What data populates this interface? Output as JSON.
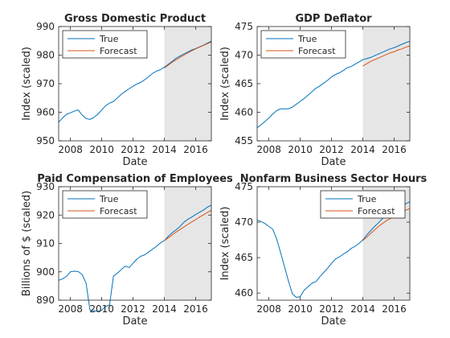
{
  "colors": {
    "true_series": "#0072BD",
    "forecast_series": "#D95319",
    "shade": "#e6e6e6",
    "axis": "#262626"
  },
  "chart_data": [
    {
      "type": "line",
      "title": "Gross Domestic Product",
      "xlabel": "Date",
      "ylabel": "Index (scaled)",
      "xlim": [
        2007.25,
        2017.0
      ],
      "ylim": [
        950,
        990
      ],
      "xticks": [
        2008,
        2010,
        2012,
        2014,
        2016
      ],
      "yticks": [
        950,
        960,
        970,
        980,
        990
      ],
      "forecast_region": [
        2014.0,
        2017.0
      ],
      "legend": "top-left",
      "series": [
        {
          "name": "True",
          "x": [
            2007.25,
            2007.5,
            2007.75,
            2008.0,
            2008.25,
            2008.5,
            2008.75,
            2009.0,
            2009.25,
            2009.5,
            2009.75,
            2010.0,
            2010.25,
            2010.5,
            2010.75,
            2011.0,
            2011.25,
            2011.5,
            2011.75,
            2012.0,
            2012.25,
            2012.5,
            2012.75,
            2013.0,
            2013.25,
            2013.5,
            2013.75,
            2014.0,
            2014.25,
            2014.5,
            2014.75,
            2015.0,
            2015.25,
            2015.5,
            2015.75,
            2016.0,
            2016.25,
            2016.5,
            2016.75,
            2017.0
          ],
          "y": [
            956.5,
            958.0,
            959.3,
            959.8,
            960.4,
            960.8,
            959.0,
            957.8,
            957.5,
            958.2,
            959.3,
            960.8,
            962.3,
            963.2,
            963.8,
            965.0,
            966.3,
            967.3,
            968.2,
            969.1,
            969.9,
            970.5,
            971.4,
            972.5,
            973.6,
            974.4,
            974.9,
            975.8,
            976.8,
            977.8,
            978.9,
            979.7,
            980.4,
            981.1,
            981.8,
            982.3,
            982.9,
            983.5,
            984.2,
            984.9
          ]
        },
        {
          "name": "Forecast",
          "x": [
            2014.0,
            2014.25,
            2014.5,
            2014.75,
            2015.0,
            2015.25,
            2015.5,
            2015.75,
            2016.0,
            2016.25,
            2016.5,
            2016.75,
            2017.0
          ],
          "y": [
            975.5,
            976.5,
            977.5,
            978.4,
            979.2,
            980.0,
            980.8,
            981.5,
            982.2,
            982.8,
            983.4,
            984.0,
            984.6
          ]
        }
      ]
    },
    {
      "type": "line",
      "title": "GDP Deflator",
      "xlabel": "Date",
      "ylabel": "Index (scaled)",
      "xlim": [
        2007.25,
        2017.0
      ],
      "ylim": [
        455,
        475
      ],
      "xticks": [
        2008,
        2010,
        2012,
        2014,
        2016
      ],
      "yticks": [
        455,
        460,
        465,
        470,
        475
      ],
      "forecast_region": [
        2014.0,
        2017.0
      ],
      "legend": "top-left",
      "series": [
        {
          "name": "True",
          "x": [
            2007.25,
            2007.5,
            2007.75,
            2008.0,
            2008.25,
            2008.5,
            2008.75,
            2009.0,
            2009.25,
            2009.5,
            2009.75,
            2010.0,
            2010.25,
            2010.5,
            2010.75,
            2011.0,
            2011.25,
            2011.5,
            2011.75,
            2012.0,
            2012.25,
            2012.5,
            2012.75,
            2013.0,
            2013.25,
            2013.5,
            2013.75,
            2014.0,
            2014.25,
            2014.5,
            2014.75,
            2015.0,
            2015.25,
            2015.5,
            2015.75,
            2016.0,
            2016.25,
            2016.5,
            2016.75,
            2017.0
          ],
          "y": [
            457.3,
            457.8,
            458.4,
            459.0,
            459.7,
            460.3,
            460.6,
            460.6,
            460.6,
            460.9,
            461.4,
            461.9,
            462.4,
            463.0,
            463.6,
            464.2,
            464.6,
            465.1,
            465.6,
            466.2,
            466.6,
            466.9,
            467.3,
            467.8,
            468.0,
            468.4,
            468.8,
            469.2,
            469.4,
            469.6,
            469.9,
            470.2,
            470.5,
            470.8,
            471.1,
            471.3,
            471.6,
            471.9,
            472.2,
            472.4
          ]
        },
        {
          "name": "Forecast",
          "x": [
            2014.0,
            2014.25,
            2014.5,
            2014.75,
            2015.0,
            2015.25,
            2015.5,
            2015.75,
            2016.0,
            2016.25,
            2016.5,
            2016.75,
            2017.0
          ],
          "y": [
            468.1,
            468.5,
            468.9,
            469.2,
            469.5,
            469.8,
            470.1,
            470.4,
            470.6,
            470.9,
            471.1,
            471.4,
            471.6
          ]
        }
      ]
    },
    {
      "type": "line",
      "title": "Paid Compensation of Employees",
      "xlabel": "Date",
      "ylabel": "Billions of $ (scaled)",
      "xlim": [
        2007.25,
        2017.0
      ],
      "ylim": [
        890,
        930
      ],
      "xticks": [
        2008,
        2010,
        2012,
        2014,
        2016
      ],
      "yticks": [
        890,
        900,
        910,
        920,
        930
      ],
      "forecast_region": [
        2014.0,
        2017.0
      ],
      "legend": "top-left",
      "series": [
        {
          "name": "True",
          "x": [
            2007.25,
            2007.5,
            2007.75,
            2008.0,
            2008.25,
            2008.5,
            2008.75,
            2009.0,
            2009.25,
            2009.5,
            2009.75,
            2010.0,
            2010.25,
            2010.5,
            2010.75,
            2011.0,
            2011.25,
            2011.5,
            2011.75,
            2012.0,
            2012.25,
            2012.5,
            2012.75,
            2013.0,
            2013.25,
            2013.5,
            2013.75,
            2014.0,
            2014.25,
            2014.5,
            2014.75,
            2015.0,
            2015.25,
            2015.5,
            2015.75,
            2016.0,
            2016.25,
            2016.5,
            2016.75,
            2017.0
          ],
          "y": [
            897.0,
            897.5,
            898.4,
            900.0,
            900.2,
            900.1,
            899.0,
            896.0,
            886.5,
            886.3,
            886.0,
            886.5,
            887.8,
            888.3,
            898.5,
            899.5,
            900.8,
            902.0,
            901.5,
            903.0,
            904.5,
            905.5,
            906.0,
            907.0,
            908.0,
            909.0,
            910.2,
            911.0,
            912.5,
            913.8,
            914.8,
            916.0,
            917.5,
            918.5,
            919.3,
            920.2,
            921.0,
            921.8,
            922.8,
            923.5
          ]
        },
        {
          "name": "Forecast",
          "x": [
            2014.0,
            2014.25,
            2014.5,
            2014.75,
            2015.0,
            2015.25,
            2015.5,
            2015.75,
            2016.0,
            2016.25,
            2016.5,
            2016.75,
            2017.0
          ],
          "y": [
            911.0,
            912.0,
            913.0,
            914.0,
            914.9,
            915.8,
            916.7,
            917.6,
            918.4,
            919.3,
            920.1,
            920.9,
            921.7
          ]
        }
      ]
    },
    {
      "type": "line",
      "title": "Nonfarm Business Sector Hours",
      "xlabel": "Date",
      "ylabel": "Index (scaled)",
      "xlim": [
        2007.25,
        2017.0
      ],
      "ylim": [
        459,
        475
      ],
      "xticks": [
        2008,
        2010,
        2012,
        2014,
        2016
      ],
      "yticks": [
        460,
        465,
        470,
        475
      ],
      "forecast_region": [
        2014.0,
        2017.0
      ],
      "legend": "top-right",
      "series": [
        {
          "name": "True",
          "x": [
            2007.25,
            2007.5,
            2007.75,
            2008.0,
            2008.25,
            2008.5,
            2008.75,
            2009.0,
            2009.25,
            2009.5,
            2009.75,
            2010.0,
            2010.25,
            2010.5,
            2010.75,
            2011.0,
            2011.25,
            2011.5,
            2011.75,
            2012.0,
            2012.25,
            2012.5,
            2012.75,
            2013.0,
            2013.25,
            2013.5,
            2013.75,
            2014.0,
            2014.25,
            2014.5,
            2014.75,
            2015.0,
            2015.25,
            2015.5,
            2015.75,
            2016.0,
            2016.25,
            2016.5,
            2016.75,
            2017.0
          ],
          "y": [
            470.3,
            470.1,
            469.8,
            469.4,
            469.0,
            467.6,
            465.7,
            463.7,
            461.7,
            459.9,
            459.4,
            459.5,
            460.4,
            460.9,
            461.4,
            461.6,
            462.3,
            462.9,
            463.5,
            464.2,
            464.8,
            465.1,
            465.5,
            465.8,
            466.3,
            466.6,
            467.0,
            467.5,
            468.2,
            468.8,
            469.4,
            469.9,
            470.5,
            471.1,
            471.5,
            471.9,
            472.2,
            472.4,
            472.6,
            472.9
          ]
        },
        {
          "name": "Forecast",
          "x": [
            2014.0,
            2014.25,
            2014.5,
            2014.75,
            2015.0,
            2015.25,
            2015.5,
            2015.75,
            2016.0,
            2016.25,
            2016.5,
            2016.75,
            2017.0
          ],
          "y": [
            467.4,
            467.9,
            468.4,
            468.9,
            469.4,
            469.8,
            470.2,
            470.5,
            470.8,
            471.1,
            471.4,
            471.7,
            471.9
          ]
        }
      ]
    }
  ]
}
